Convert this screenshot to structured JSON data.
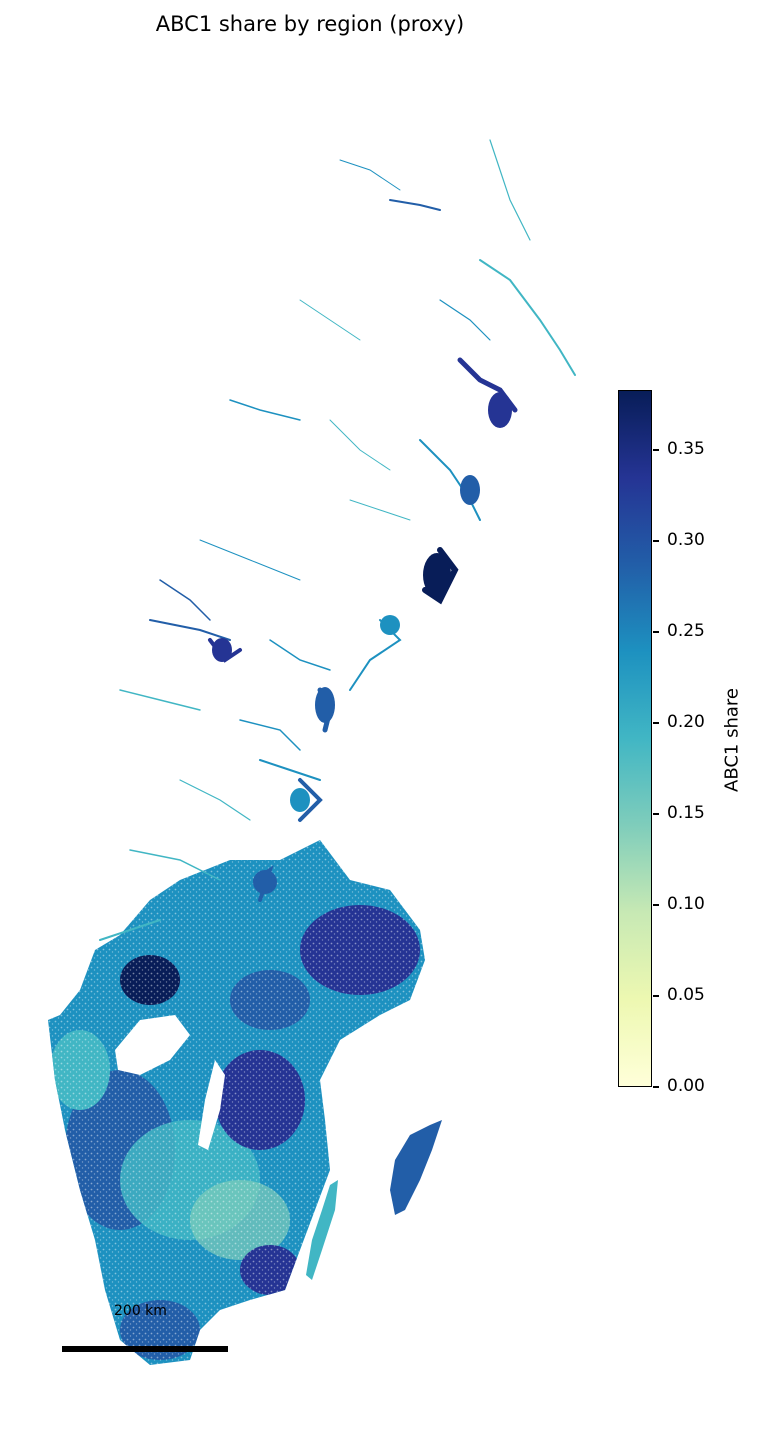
{
  "title": "ABC1 share by region (proxy)",
  "colorbar": {
    "label": "ABC1 share",
    "min": 0.0,
    "max": 0.383,
    "ticks": [
      "0.00",
      "0.05",
      "0.10",
      "0.15",
      "0.20",
      "0.25",
      "0.30",
      "0.35"
    ],
    "tick_values": [
      0.0,
      0.05,
      0.1,
      0.15,
      0.2,
      0.25,
      0.3,
      0.35
    ],
    "colormap": "YlGnBu",
    "colors": [
      "#ffffd9",
      "#edf8b1",
      "#c7e9b4",
      "#7fcdbb",
      "#41b6c4",
      "#1d91c0",
      "#225ea8",
      "#253494",
      "#081d58"
    ]
  },
  "scalebar": {
    "label": "200 km"
  },
  "map": {
    "region": "Sweden",
    "variable": "ABC1 share"
  }
}
